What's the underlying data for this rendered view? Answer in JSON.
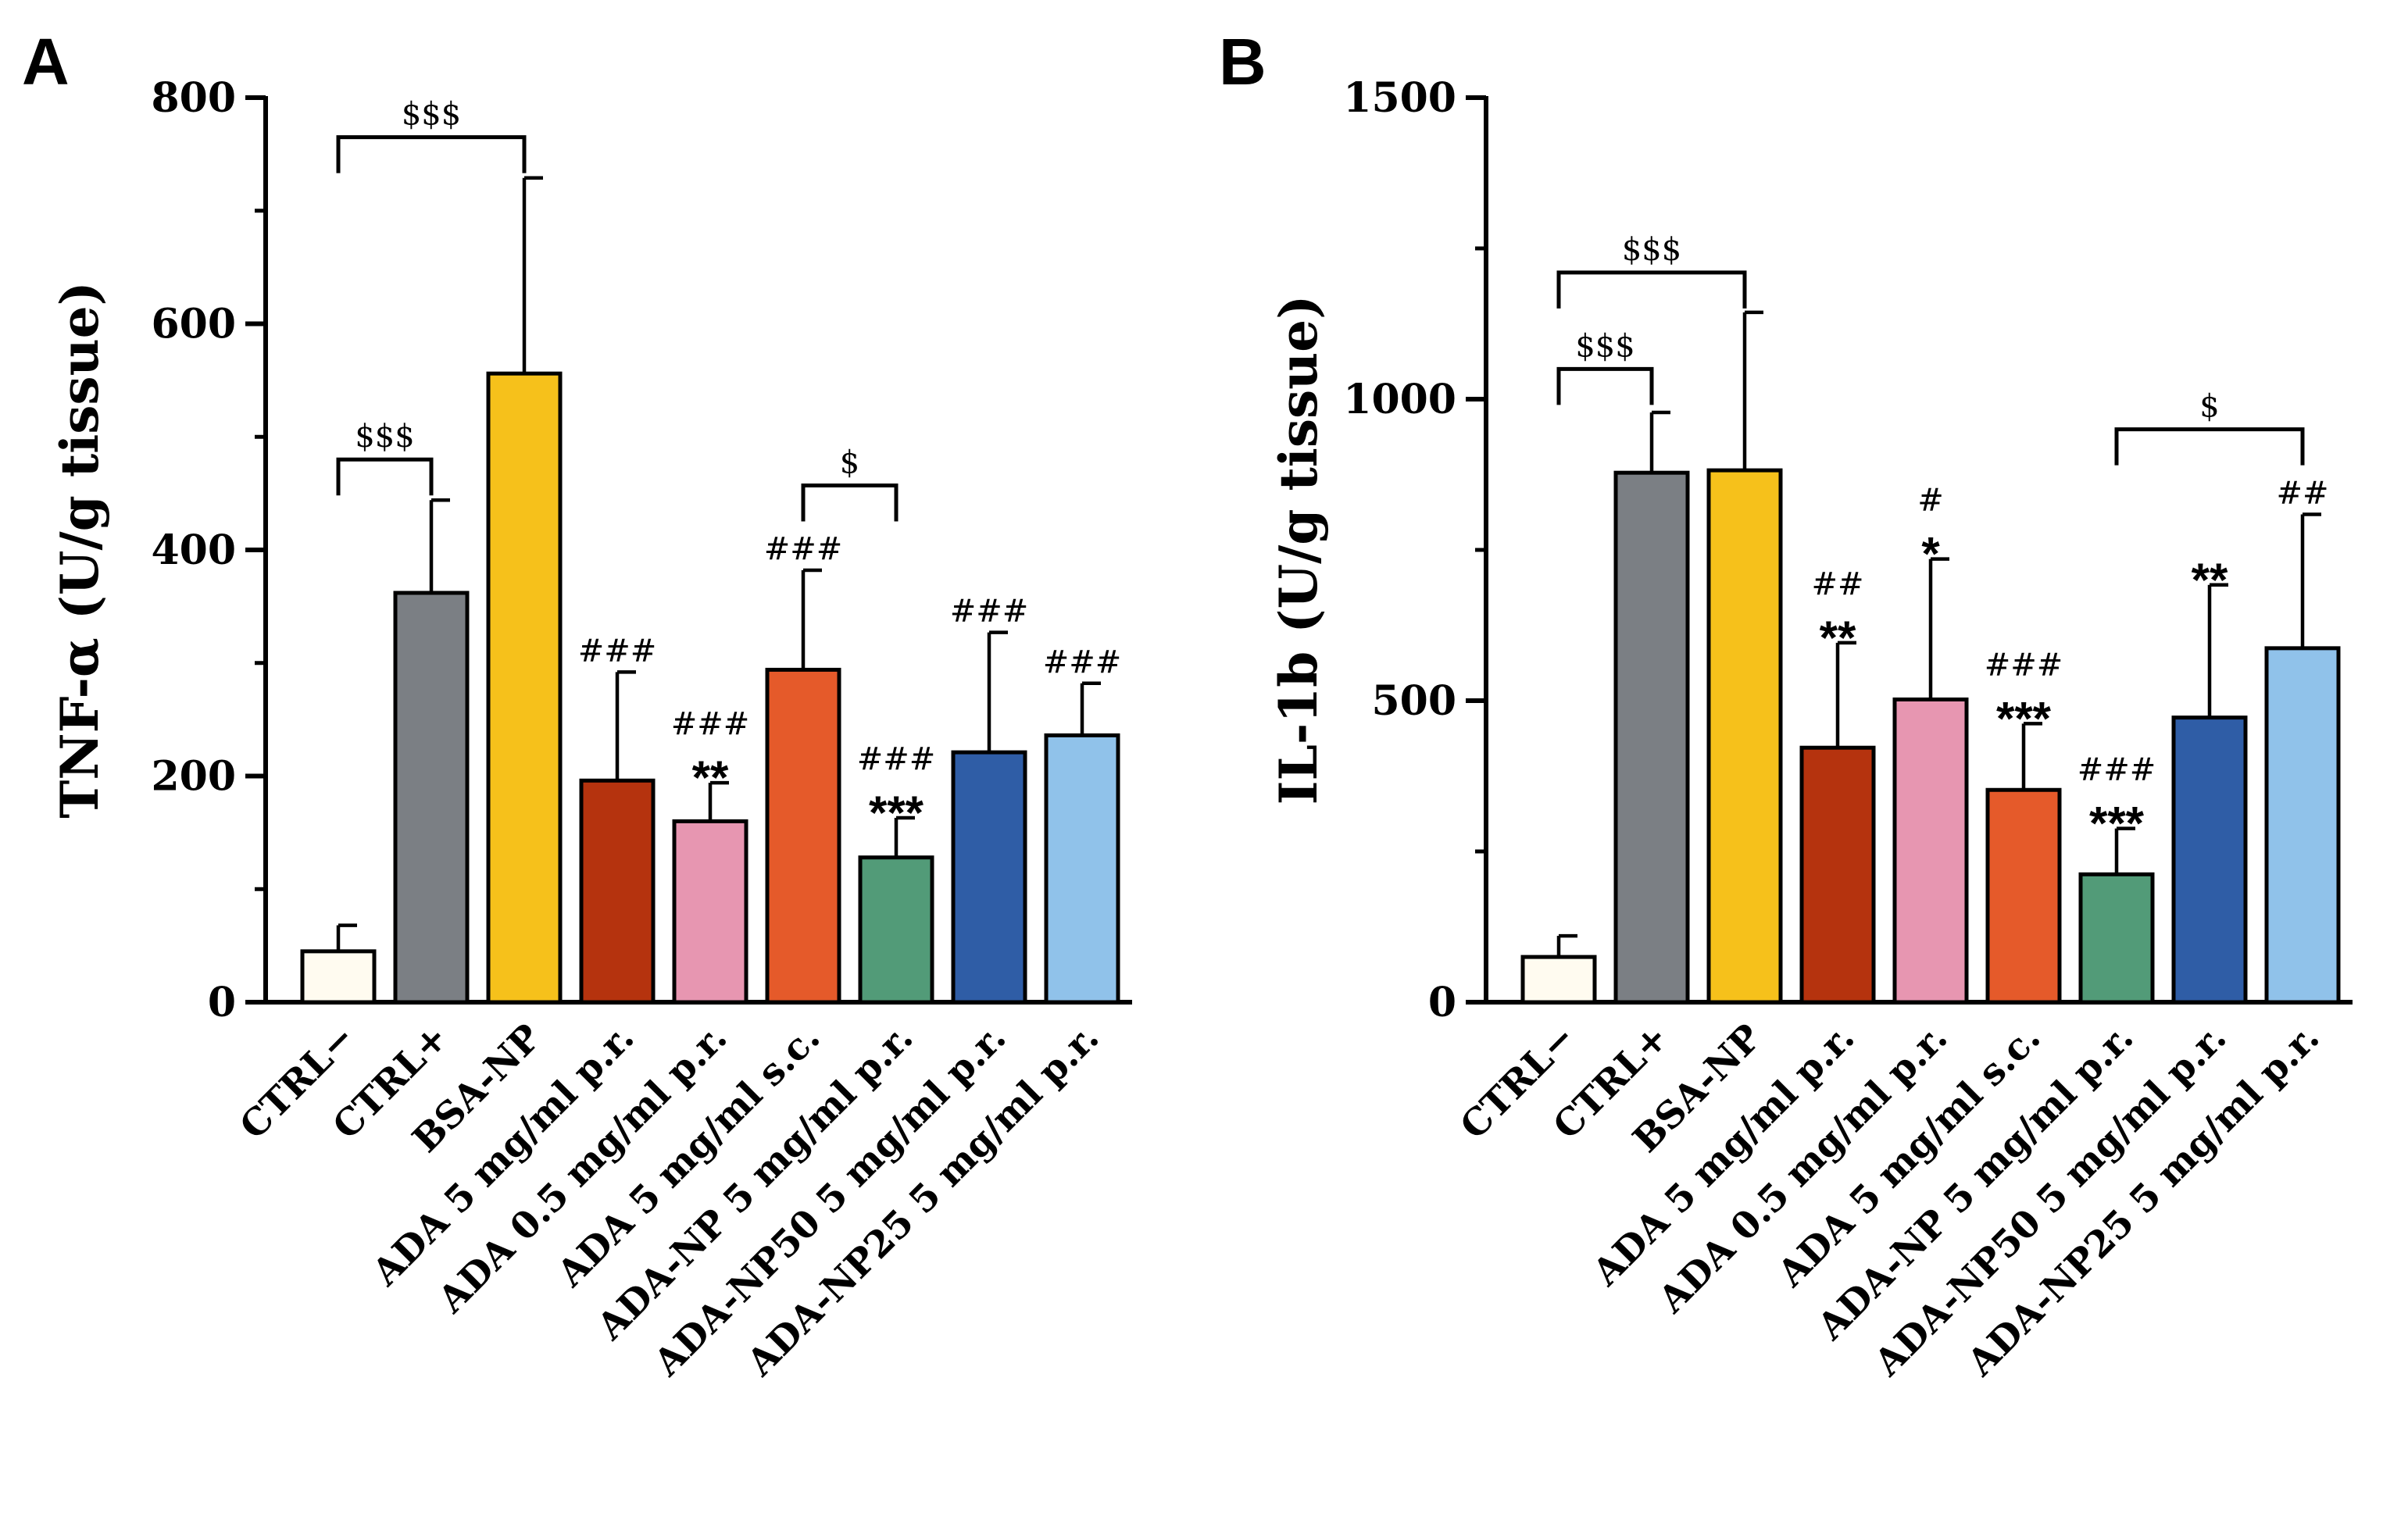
{
  "chart_data": [
    {
      "panel": "A",
      "type": "bar",
      "ylabel": "TNF-α (U/g tissue)",
      "ylim": [
        0,
        800
      ],
      "yticks": [
        0,
        200,
        400,
        600,
        800
      ],
      "categories": [
        "CTRL−",
        "CTRL+",
        "BSA-NP",
        "ADA 5 mg/ml p.r.",
        "ADA 0.5 mg/ml p.r.",
        "ADA 5 mg/ml s.c.",
        "ADA-NP 5 mg/ml p.r.",
        "ADA-NP50 5 mg/ml p.r.",
        "ADA-NP25 5 mg/ml p.r."
      ],
      "values": [
        45,
        362,
        556,
        196,
        160,
        294,
        128,
        221,
        236
      ],
      "errors": [
        23,
        82,
        173,
        96,
        34,
        88,
        35,
        106,
        46
      ],
      "colors": [
        "#fffbf0",
        "#7b7f84",
        "#f6c11b",
        "#b5330e",
        "#e796b1",
        "#e55a2a",
        "#529b78",
        "#2f5da6",
        "#90c2ea"
      ],
      "annotations": [
        {
          "index": 3,
          "hash": "###",
          "stars": ""
        },
        {
          "index": 4,
          "hash": "###",
          "stars": "**"
        },
        {
          "index": 5,
          "hash": "###",
          "stars": ""
        },
        {
          "index": 6,
          "hash": "###",
          "stars": "***"
        },
        {
          "index": 7,
          "hash": "###",
          "stars": ""
        },
        {
          "index": 8,
          "hash": "###",
          "stars": ""
        }
      ],
      "brackets": [
        {
          "from": 0,
          "to": 2,
          "y": 765,
          "label": "$$$"
        },
        {
          "from": 0,
          "to": 1,
          "y": 480,
          "label": "$$$"
        },
        {
          "from": 5,
          "to": 6,
          "y": 457,
          "label": "$"
        }
      ]
    },
    {
      "panel": "B",
      "type": "bar",
      "ylabel": "IL-1b (U/g tissue)",
      "ylim": [
        0,
        1500
      ],
      "yticks": [
        0,
        500,
        1000,
        1500
      ],
      "categories": [
        "CTRL−",
        "CTRL+",
        "BSA-NP",
        "ADA 5 mg/ml p.r.",
        "ADA 0.5 mg/ml p.r.",
        "ADA 5 mg/ml s.c.",
        "ADA-NP 5 mg/ml p.r.",
        "ADA-NP50 5 mg/ml p.r.",
        "ADA-NP25 5 mg/ml p.r."
      ],
      "values": [
        75,
        878,
        882,
        422,
        502,
        352,
        212,
        472,
        587
      ],
      "errors": [
        35,
        100,
        262,
        174,
        233,
        110,
        76,
        220,
        222
      ],
      "colors": [
        "#fffbf0",
        "#7b7f84",
        "#f6c11b",
        "#b5330e",
        "#e796b1",
        "#e55a2a",
        "#529b78",
        "#2f5da6",
        "#90c2ea"
      ],
      "annotations": [
        {
          "index": 3,
          "hash": "##",
          "stars": "**"
        },
        {
          "index": 4,
          "hash": "#",
          "stars": "*"
        },
        {
          "index": 5,
          "hash": "###",
          "stars": "***"
        },
        {
          "index": 6,
          "hash": "###",
          "stars": "***"
        },
        {
          "index": 7,
          "hash": "",
          "stars": "**"
        },
        {
          "index": 8,
          "hash": "##",
          "stars": ""
        }
      ],
      "brackets": [
        {
          "from": 0,
          "to": 2,
          "y": 1210,
          "label": "$$$"
        },
        {
          "from": 0,
          "to": 1,
          "y": 1050,
          "label": "$$$"
        },
        {
          "from": 6,
          "to": 8,
          "y": 950,
          "label": "$"
        }
      ]
    }
  ]
}
